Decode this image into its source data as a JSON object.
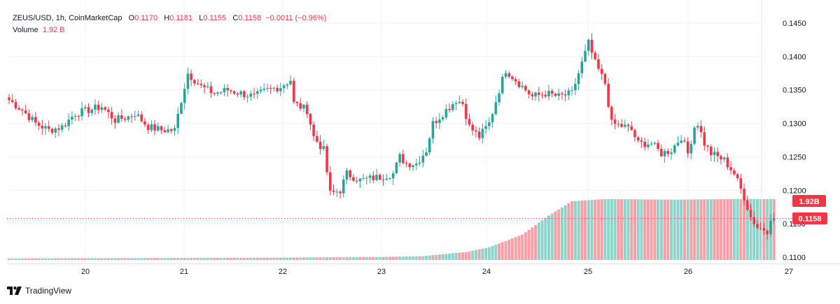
{
  "header": {
    "symbol_line": "ZEUS/USD, 1h, CoinMarketCap",
    "o_label": "O",
    "o_value": "0.1170",
    "h_label": "H",
    "h_value": "0.1181",
    "l_label": "L",
    "l_value": "0.1155",
    "c_label": "C",
    "c_value": "0.1158",
    "change": "−0.0011 (−0.96%)",
    "volume_label": "Volume",
    "volume_value": "1.92 B"
  },
  "brand": {
    "name": "TradingView"
  },
  "colors": {
    "up": "#26a69a",
    "down": "#f23645",
    "up_vol": "#8fd4cb",
    "down_vol": "#f9a0a7",
    "grid": "#f0f3fa",
    "axis_text": "#131722"
  },
  "chart_data": {
    "type": "candlestick",
    "title": "ZEUS/USD, 1h, CoinMarketCap",
    "price_axis": {
      "ticks": [
        "0.1450",
        "0.1400",
        "0.1350",
        "0.1300",
        "0.1250",
        "0.1200",
        "0.1150",
        "0.1100"
      ],
      "range": [
        0.1095,
        0.146
      ]
    },
    "time_axis": {
      "ticks": [
        "20",
        "21",
        "22",
        "23",
        "24",
        "25",
        "26",
        "27"
      ]
    },
    "last_price_label": "0.1158",
    "last_price": 0.1158,
    "volume_label": "1.92B",
    "volume_last": 1.92,
    "volume_max": 1.96,
    "anchors": [
      [
        0,
        0.1335
      ],
      [
        4,
        0.132
      ],
      [
        8,
        0.13
      ],
      [
        12,
        0.129
      ],
      [
        16,
        0.1295
      ],
      [
        20,
        0.1315
      ],
      [
        24,
        0.132
      ],
      [
        28,
        0.1325
      ],
      [
        32,
        0.1305
      ],
      [
        36,
        0.131
      ],
      [
        38,
        0.1315
      ],
      [
        42,
        0.1295
      ],
      [
        46,
        0.129
      ],
      [
        50,
        0.129
      ],
      [
        52,
        0.1335
      ],
      [
        54,
        0.1375
      ],
      [
        58,
        0.1355
      ],
      [
        62,
        0.1345
      ],
      [
        66,
        0.135
      ],
      [
        70,
        0.1345
      ],
      [
        74,
        0.134
      ],
      [
        78,
        0.135
      ],
      [
        82,
        0.1355
      ],
      [
        85,
        0.1365
      ],
      [
        86,
        0.133
      ],
      [
        90,
        0.132
      ],
      [
        92,
        0.128
      ],
      [
        95,
        0.126
      ],
      [
        97,
        0.1195
      ],
      [
        100,
        0.12
      ],
      [
        102,
        0.1225
      ],
      [
        106,
        0.1215
      ],
      [
        112,
        0.122
      ],
      [
        116,
        0.1225
      ],
      [
        118,
        0.125
      ],
      [
        120,
        0.124
      ],
      [
        123,
        0.124
      ],
      [
        126,
        0.126
      ],
      [
        128,
        0.13
      ],
      [
        132,
        0.132
      ],
      [
        135,
        0.1335
      ],
      [
        137,
        0.133
      ],
      [
        139,
        0.1295
      ],
      [
        142,
        0.128
      ],
      [
        145,
        0.13
      ],
      [
        148,
        0.135
      ],
      [
        150,
        0.138
      ],
      [
        152,
        0.137
      ],
      [
        156,
        0.135
      ],
      [
        158,
        0.134
      ],
      [
        162,
        0.1345
      ],
      [
        166,
        0.134
      ],
      [
        170,
        0.1345
      ],
      [
        172,
        0.1375
      ],
      [
        175,
        0.142
      ],
      [
        177,
        0.139
      ],
      [
        180,
        0.136
      ],
      [
        182,
        0.13
      ],
      [
        186,
        0.1295
      ],
      [
        188,
        0.129
      ],
      [
        190,
        0.127
      ],
      [
        194,
        0.127
      ],
      [
        197,
        0.1255
      ],
      [
        200,
        0.126
      ],
      [
        203,
        0.128
      ],
      [
        205,
        0.1255
      ],
      [
        207,
        0.1295
      ],
      [
        208,
        0.13
      ],
      [
        210,
        0.127
      ],
      [
        212,
        0.1255
      ],
      [
        216,
        0.1245
      ],
      [
        219,
        0.1225
      ],
      [
        222,
        0.119
      ],
      [
        224,
        0.116
      ],
      [
        226,
        0.1145
      ],
      [
        229,
        0.114
      ],
      [
        230,
        0.116
      ],
      [
        231,
        0.1158
      ]
    ],
    "volume_anchors": [
      [
        0,
        0.05
      ],
      [
        40,
        0.06
      ],
      [
        80,
        0.07
      ],
      [
        110,
        0.09
      ],
      [
        125,
        0.12
      ],
      [
        138,
        0.25
      ],
      [
        145,
        0.4
      ],
      [
        155,
        0.8
      ],
      [
        163,
        1.4
      ],
      [
        170,
        1.85
      ],
      [
        180,
        1.92
      ],
      [
        200,
        1.9
      ],
      [
        220,
        1.92
      ],
      [
        231,
        1.92
      ]
    ],
    "volume_pattern": "DUUUUDDDDDUUUUDDUDUDUDDDUUUDDUDUUDUDDUUUUUDDDDUUUUDDUDUDUDUUUUDDUUDDDUDDUDUDUDDUDUDUUUDDUDUUUDDUDUDDDUDUUUDDUDDUUDUDDDUUUUUUDUUUDUDUUUUUDDDDUUDUUUUUDDDDDDDDDDDDUUUUUDDUUDDUUDDUUDDDUUUUDDUUDDUUDDDDUUDDUUUUDUDDUDDUUDDDDDDUUDDUUUUUDUUDUUDDDDDDDDUUDU"
  }
}
